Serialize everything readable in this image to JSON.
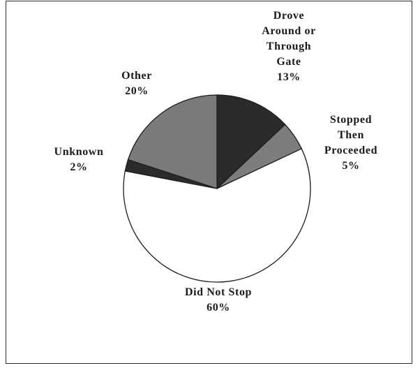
{
  "chart_data": {
    "type": "pie",
    "slices": [
      {
        "name": "Drove Around or Through Gate",
        "label_lines": [
          "Drove",
          "Around or",
          "Through",
          "Gate",
          "13%"
        ],
        "value": 13,
        "color": "#2b2b2b"
      },
      {
        "name": "Stopped Then Proceeded",
        "label_lines": [
          "Stopped",
          "Then",
          "Proceeded",
          "5%"
        ],
        "value": 5,
        "color": "#7d7d7d"
      },
      {
        "name": "Did Not Stop",
        "label_lines": [
          "Did Not Stop",
          "60%"
        ],
        "value": 60,
        "color": "#ffffff"
      },
      {
        "name": "Unknown",
        "label_lines": [
          "Unknown",
          "2%"
        ],
        "value": 2,
        "color": "#2b2b2b"
      },
      {
        "name": "Other",
        "label_lines": [
          "Other",
          "20%"
        ],
        "value": 20,
        "color": "#7a7a7a"
      }
    ],
    "start": "12 o'clock",
    "direction": "clockwise",
    "legend": "none"
  }
}
